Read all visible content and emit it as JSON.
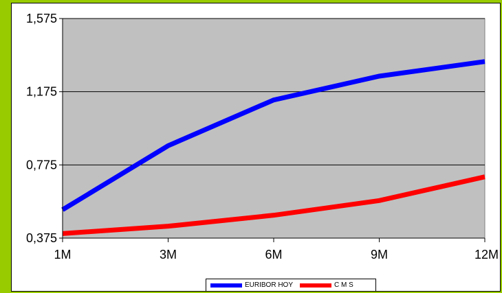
{
  "chart_data": {
    "type": "line",
    "categories": [
      "1M",
      "3M",
      "6M",
      "9M",
      "12M"
    ],
    "yticks": [
      "1,575",
      "1,175",
      "0,775",
      "0,375"
    ],
    "ytick_values": [
      1.575,
      1.175,
      0.775,
      0.375
    ],
    "ylim": [
      0.375,
      1.575
    ],
    "series": [
      {
        "name": "EURIBOR HOY",
        "color": "#0000ff",
        "values": [
          0.53,
          0.88,
          1.13,
          1.26,
          1.34
        ]
      },
      {
        "name": "C M S",
        "color": "#ff0000",
        "values": [
          0.4,
          0.44,
          0.5,
          0.58,
          0.71
        ]
      }
    ],
    "plot_background": "#c0c0c0",
    "page_background": "#99cc00",
    "grid": true,
    "legend_position": "bottom"
  }
}
